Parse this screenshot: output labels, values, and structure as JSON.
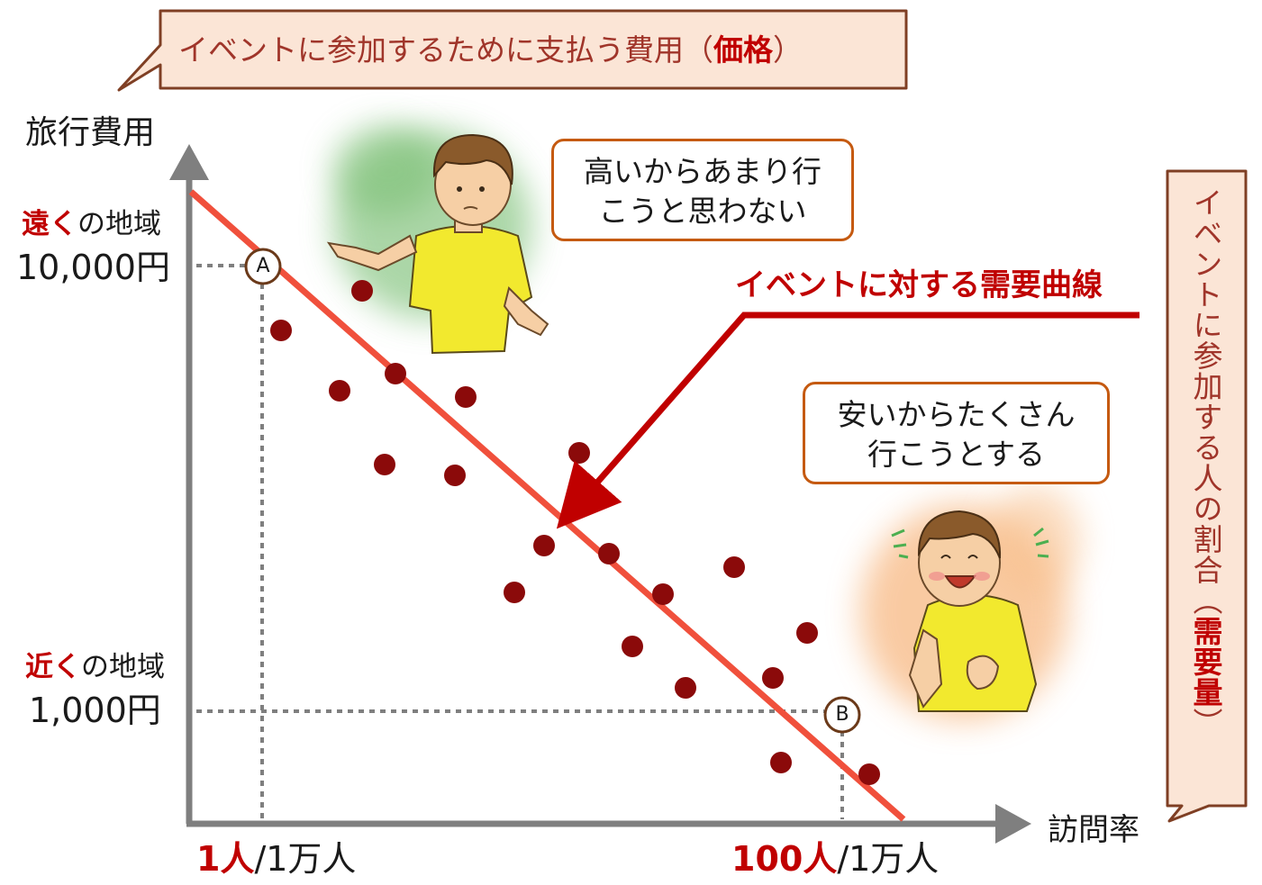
{
  "price_note": {
    "text": "イベントに参加するために支払う費用（",
    "emphasis": "価格",
    "close": "）"
  },
  "demand_note": {
    "text": "イベントに参加する人の割合（",
    "emphasis": "需要量",
    "close": "）"
  },
  "y_axis_title": "旅行費用",
  "x_axis_title": "訪問率",
  "far": {
    "emphasis": "遠く",
    "rest": "の地域",
    "price": "10,000円"
  },
  "near": {
    "emphasis": "近く",
    "rest": "の地域",
    "price": "1,000円"
  },
  "x_left": {
    "emphasis": "1人",
    "rest": "/1万人"
  },
  "x_right": {
    "emphasis": "100人",
    "rest": "/1万人"
  },
  "curve_label": "イベントに対する需要曲線",
  "bubble_high": {
    "line1": "高いからあまり行",
    "line2": "こうと思わない"
  },
  "bubble_low": {
    "line1": "安いからたくさん",
    "line2": "行こうとする"
  },
  "point_a": "A",
  "point_b": "B",
  "colors": {
    "accent_red": "#c00000",
    "demand_line": "#f0503c",
    "dots": "#8b0a0a",
    "axis": "#7f7f7f",
    "callout_fill": "#fbe5d6",
    "callout_border": "#7f3f24",
    "bubble_border": "#c55a11",
    "shirt": "#f2e92e"
  },
  "illustrations": [
    "boy-shrugging",
    "boy-cheering"
  ]
}
